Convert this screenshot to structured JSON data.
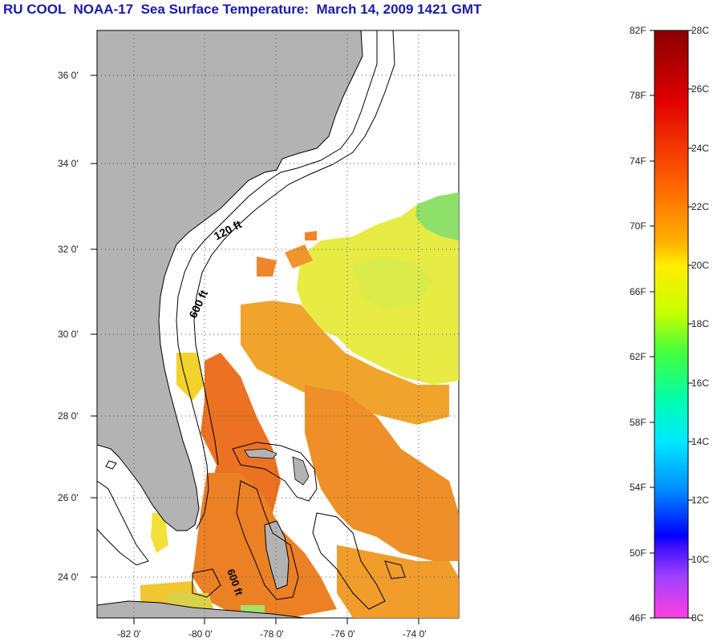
{
  "title": "RU COOL  NOAA-17  Sea Surface Temperature:  March 14, 2009 1421 GMT",
  "map": {
    "lat_ticks": [
      "36 0'",
      "34 0'",
      "32 0'",
      "30 0'",
      "28 0'",
      "26 0'",
      "24 0'"
    ],
    "lon_ticks": [
      "-82 0'",
      "-80 0'",
      "-78 0'",
      "-76 0'",
      "-74 0'"
    ],
    "contour_labels": [
      "120 ft",
      "600 ft",
      "600 ft"
    ],
    "land_color": "#b3b3b3",
    "grid": "dotted"
  },
  "colorbar": {
    "fahrenheit": [
      "82F",
      "78F",
      "74F",
      "70F",
      "66F",
      "62F",
      "58F",
      "54F",
      "50F",
      "46F"
    ],
    "celsius": [
      "28C",
      "26C",
      "24C",
      "22C",
      "20C",
      "18C",
      "16C",
      "14C",
      "12C",
      "10C",
      "8C"
    ]
  }
}
